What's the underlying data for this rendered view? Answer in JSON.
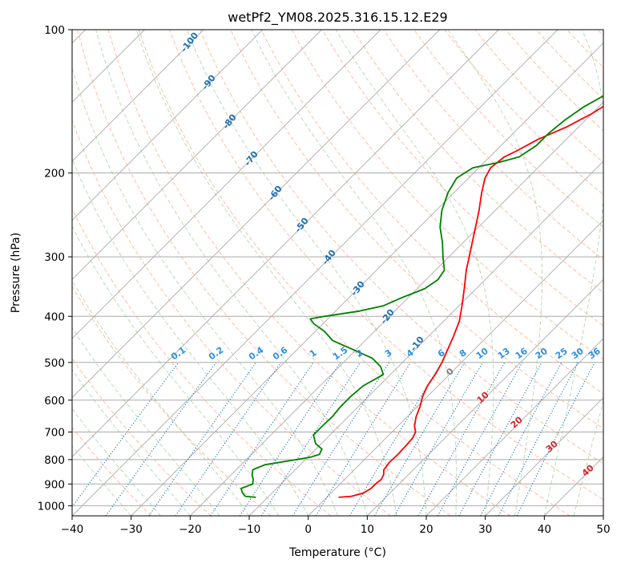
{
  "chart_data": {
    "type": "line",
    "title": "wetPf2_YM08.2025.316.15.12.E29",
    "xlabel": "Temperature (°C)",
    "ylabel": "Pressure (hPa)",
    "xlim": [
      -40,
      50
    ],
    "ylim": [
      1050,
      100
    ],
    "y_scale": "log",
    "grid": true,
    "x_ticks": [
      "−40",
      "−30",
      "−20",
      "−10",
      "0",
      "10",
      "20",
      "30",
      "40",
      "50"
    ],
    "x_tick_values": [
      -40,
      -30,
      -20,
      -10,
      0,
      10,
      20,
      30,
      40,
      50
    ],
    "y_ticks": [
      "100",
      "200",
      "300",
      "400",
      "500",
      "600",
      "700",
      "800",
      "900",
      "1000"
    ],
    "y_tick_values": [
      100,
      200,
      300,
      400,
      500,
      600,
      700,
      800,
      900,
      1000
    ],
    "series": [
      {
        "color": "#ff0000",
        "p": [
          960,
          955,
          940,
          920,
          900,
          880,
          860,
          840,
          810,
          780,
          750,
          720,
          700,
          680,
          650,
          620,
          590,
          560,
          530,
          500,
          470,
          440,
          410,
          380,
          350,
          320,
          290,
          260,
          240,
          220,
          205,
          195,
          185,
          180,
          170,
          160,
          150,
          140,
          130,
          120,
          110,
          100
        ],
        "t": [
          2.0,
          4.0,
          5.5,
          6.0,
          6.0,
          6.2,
          5.8,
          5.0,
          4.7,
          4.8,
          4.7,
          4.5,
          4.0,
          2.8,
          1.5,
          0.5,
          -0.8,
          -1.8,
          -2.4,
          -3.3,
          -4.5,
          -5.8,
          -7.3,
          -9.5,
          -12.0,
          -14.8,
          -17.5,
          -20.5,
          -22.7,
          -25.3,
          -27.2,
          -28.0,
          -27.5,
          -26.5,
          -24.8,
          -22.0,
          -20.0,
          -18.5,
          -17.3,
          -15.8,
          -13.5,
          -11.0
        ]
      },
      {
        "color": "#008000",
        "p": [
          960,
          955,
          940,
          920,
          900,
          880,
          860,
          840,
          820,
          800,
          790,
          780,
          760,
          740,
          710,
          680,
          650,
          620,
          590,
          560,
          530,
          510,
          490,
          470,
          450,
          430,
          415,
          405,
          400,
          390,
          380,
          365,
          350,
          335,
          320,
          300,
          280,
          260,
          240,
          220,
          205,
          195,
          190,
          185,
          175,
          165,
          155,
          145,
          135,
          125,
          115,
          100
        ],
        "t": [
          -12.0,
          -14.0,
          -15.0,
          -16.0,
          -14.8,
          -15.5,
          -16.5,
          -17.2,
          -16.0,
          -11.5,
          -9.5,
          -8.5,
          -9.0,
          -11.0,
          -12.8,
          -12.8,
          -12.7,
          -13.0,
          -13.0,
          -12.7,
          -11.2,
          -13.0,
          -15.8,
          -20.5,
          -25.5,
          -28.5,
          -31.5,
          -33.0,
          -31.0,
          -26.0,
          -22.8,
          -21.0,
          -18.7,
          -18.0,
          -18.5,
          -21.0,
          -23.5,
          -26.5,
          -29.0,
          -31.0,
          -32.0,
          -31.0,
          -27.5,
          -25.0,
          -24.0,
          -24.0,
          -23.5,
          -22.5,
          -20.5,
          -17.8,
          -15.7,
          -11.5
        ]
      }
    ],
    "dry_adiabat_labels": [
      "-100",
      "-90",
      "-80",
      "-70",
      "-60",
      "-50",
      "-40",
      "-30",
      "-20",
      "-10"
    ],
    "mixing_ratio_labels": [
      "0.1",
      "0.2",
      "0.4",
      "0.6",
      "1",
      "1.5",
      "2",
      "3",
      "4",
      "6",
      "8",
      "10",
      "13",
      "16",
      "20",
      "25",
      "30",
      "36"
    ],
    "mixing_ratio_values": [
      0.1,
      0.2,
      0.4,
      0.6,
      1,
      1.5,
      2,
      3,
      4,
      6,
      8,
      10,
      13,
      16,
      20,
      25,
      30,
      36
    ],
    "moist_adiabat_labels": [
      "0",
      "10",
      "20",
      "30",
      "40"
    ],
    "colors": {
      "temperature": "#ff0000",
      "dewpoint": "#008000",
      "isotherm": "#aaaaaa",
      "dry_adiabat": "#ff9f80",
      "moist_adiabat": "#7fbf7f",
      "mixing_ratio": "#1f77b4",
      "dry_label": "#1f6fb0",
      "mix_label": "#2b8fe8",
      "moist_label": "#d62728",
      "zero_label": "#808080"
    }
  }
}
